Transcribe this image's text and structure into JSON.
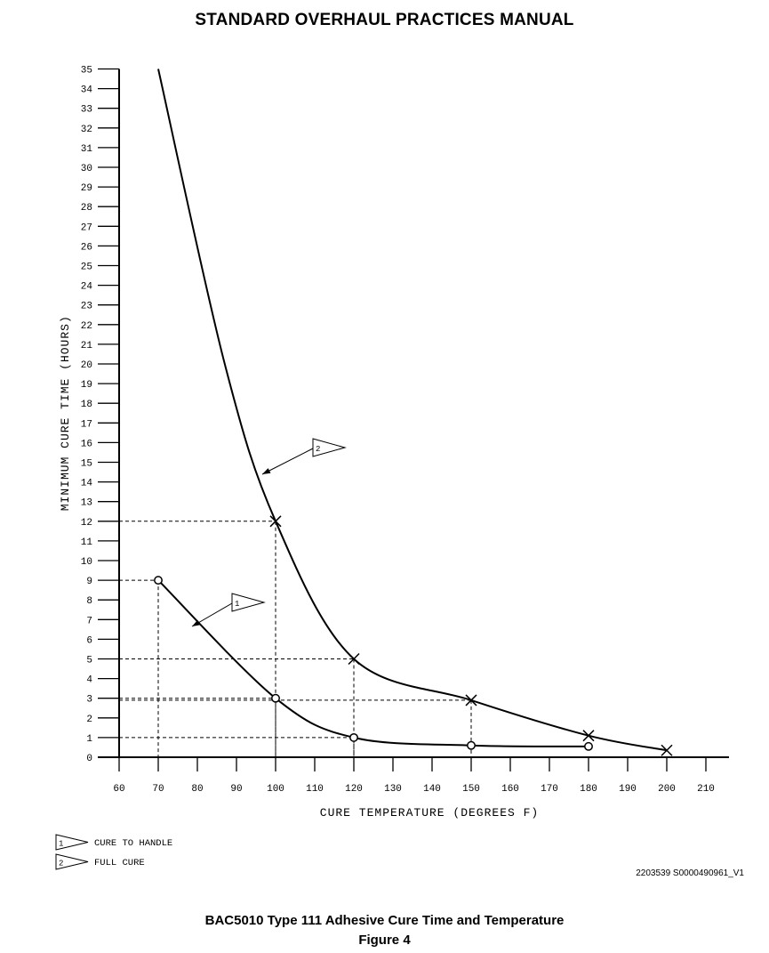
{
  "header": {
    "title": "STANDARD OVERHAUL PRACTICES MANUAL"
  },
  "chart_data": {
    "type": "line",
    "xlabel": "CURE TEMPERATURE (DEGREES F)",
    "ylabel": "MINIMUM CURE TIME (HOURS)",
    "xlim": [
      60,
      210
    ],
    "ylim": [
      0,
      35
    ],
    "x_ticks": [
      60,
      70,
      80,
      90,
      100,
      110,
      120,
      130,
      140,
      150,
      160,
      170,
      180,
      190,
      200,
      210
    ],
    "y_ticks": [
      0,
      1,
      2,
      3,
      4,
      5,
      6,
      7,
      8,
      9,
      10,
      11,
      12,
      13,
      14,
      15,
      16,
      17,
      18,
      19,
      20,
      21,
      22,
      23,
      24,
      25,
      26,
      27,
      28,
      29,
      30,
      31,
      32,
      33,
      34,
      35
    ],
    "grid": false,
    "series": [
      {
        "name": "CURE TO HANDLE",
        "callout": "1",
        "marker": "circle",
        "points": [
          [
            70,
            9
          ],
          [
            100,
            3
          ],
          [
            120,
            1
          ],
          [
            150,
            0.6
          ],
          [
            180,
            0.55
          ]
        ]
      },
      {
        "name": "FULL CURE",
        "callout": "2",
        "marker": "x",
        "curve_start": [
          70,
          35
        ],
        "points": [
          [
            100,
            12
          ],
          [
            120,
            5
          ],
          [
            150,
            2.9
          ],
          [
            180,
            1.1
          ],
          [
            200,
            0.35
          ]
        ]
      }
    ],
    "reference_lines": [
      {
        "x": 70,
        "y": 9
      },
      {
        "x": 100,
        "y": 12
      },
      {
        "x": 100,
        "y": 3
      },
      {
        "x": 120,
        "y": 5
      },
      {
        "x": 120,
        "y": 1
      },
      {
        "x": 150,
        "y": 2.9
      }
    ],
    "legend": [
      {
        "id": "1",
        "label": "CURE TO HANDLE"
      },
      {
        "id": "2",
        "label": "FULL CURE"
      }
    ],
    "legend_position": "bottom-left"
  },
  "figure_ref": "2203539 S0000490961_V1",
  "caption": {
    "title": "BAC5010 Type 111 Adhesive Cure Time and Temperature",
    "figure": "Figure 4"
  }
}
